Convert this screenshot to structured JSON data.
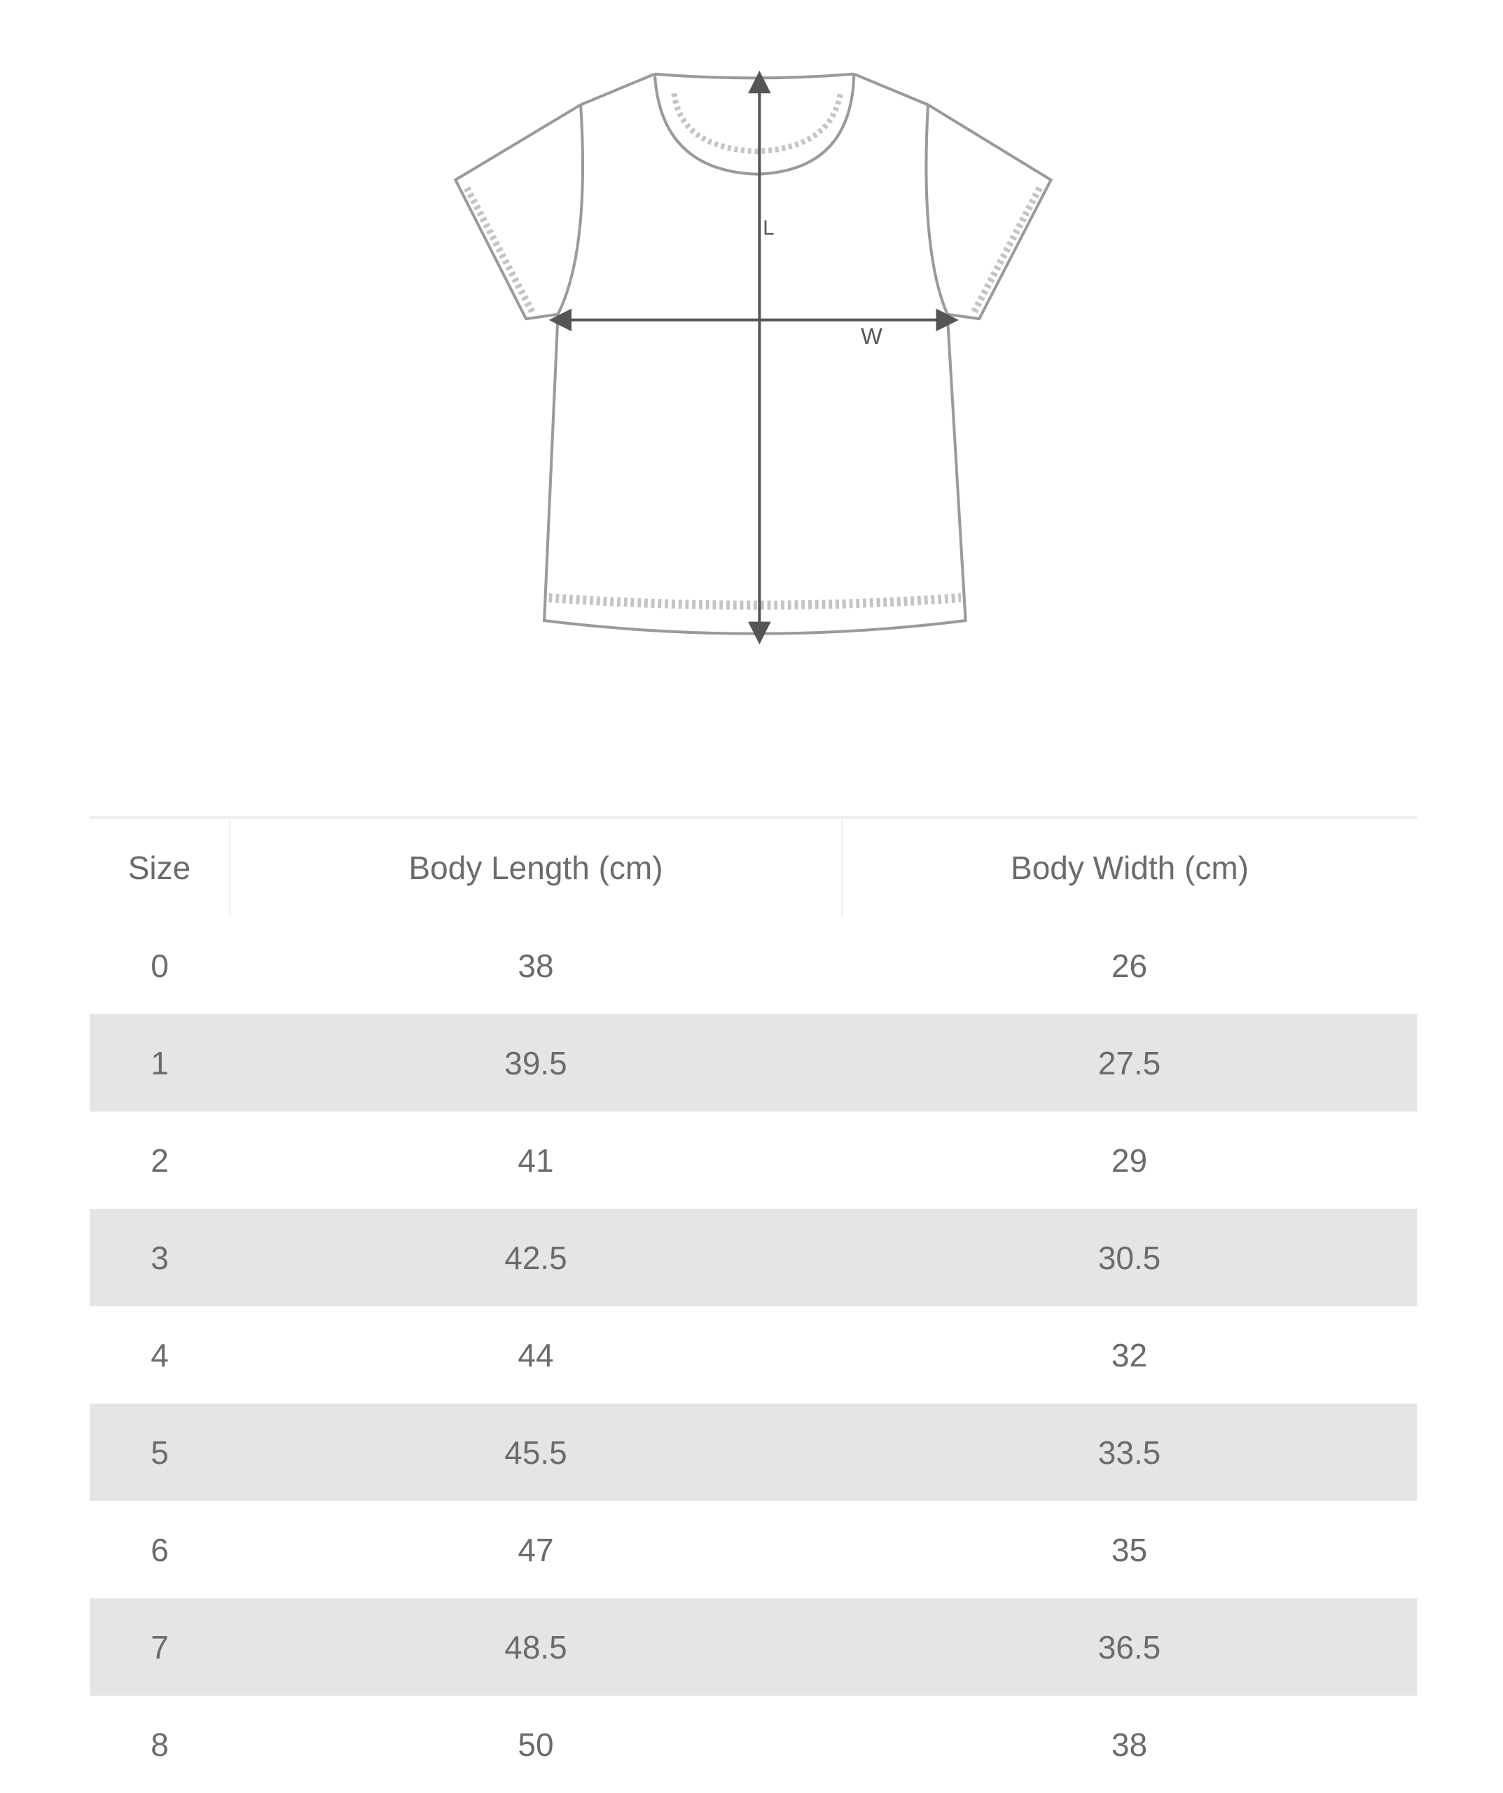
{
  "diagram": {
    "length_label": "L",
    "width_label": "W"
  },
  "table": {
    "headers": [
      "Size",
      "Body Length (cm)",
      "Body Width (cm)"
    ],
    "rows": [
      [
        "0",
        "38",
        "26"
      ],
      [
        "1",
        "39.5",
        "27.5"
      ],
      [
        "2",
        "41",
        "29"
      ],
      [
        "3",
        "42.5",
        "30.5"
      ],
      [
        "4",
        "44",
        "32"
      ],
      [
        "5",
        "45.5",
        "33.5"
      ],
      [
        "6",
        "47",
        "35"
      ],
      [
        "7",
        "48.5",
        "36.5"
      ],
      [
        "8",
        "50",
        "38"
      ]
    ],
    "stripe_color": "#e5e5e5",
    "text_color": "#6b6b6b"
  }
}
